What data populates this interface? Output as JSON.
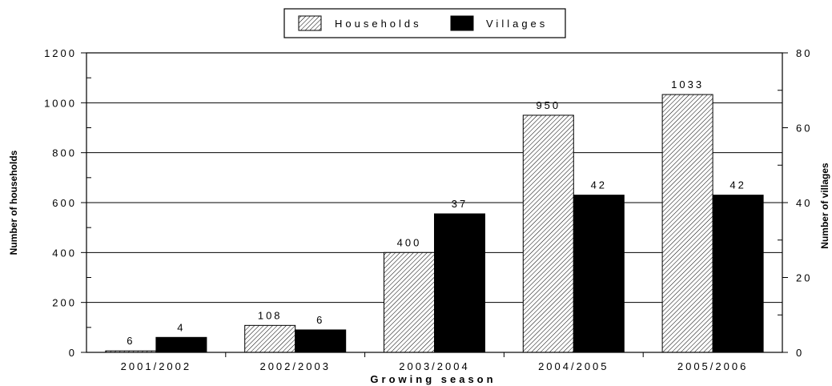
{
  "chart_data": {
    "type": "bar",
    "categories": [
      "2001/2002",
      "2002/2003",
      "2003/2004",
      "2004/2005",
      "2005/2006"
    ],
    "series": [
      {
        "name": "Households",
        "axis": "left",
        "values": [
          6,
          108,
          400,
          950,
          1033
        ],
        "pattern": "hatched"
      },
      {
        "name": "Villages",
        "axis": "right",
        "values": [
          4,
          6,
          37,
          42,
          42
        ],
        "pattern": "solid",
        "color": "#000000"
      }
    ],
    "xlabel": "Growing season",
    "ylabel": "Number of households",
    "y2label": "Number of  villages",
    "ylim": [
      0,
      1200
    ],
    "y2lim": [
      0,
      80
    ],
    "yticks": [
      0,
      200,
      400,
      600,
      800,
      1000,
      1200
    ],
    "y2ticks": [
      0,
      20,
      40,
      60,
      80
    ],
    "grid": true,
    "legend_position": "top-center"
  },
  "colors": {
    "villages": "#000000",
    "households_fill": "#ffffff",
    "households_hatch": "#000000"
  }
}
